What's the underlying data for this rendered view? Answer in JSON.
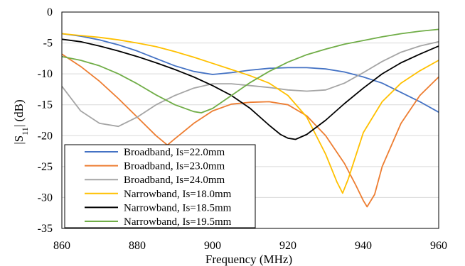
{
  "chart_data": {
    "type": "line",
    "title": "",
    "xlabel": "Frequency (MHz)",
    "ylabel": "|S11| (dB)",
    "ylabel_main": "|S",
    "ylabel_sub": "11",
    "ylabel_tail": "| (dB)",
    "xlim": [
      860,
      960
    ],
    "ylim": [
      -35,
      0
    ],
    "x_ticks": [
      "860",
      "880",
      "900",
      "920",
      "940",
      "960"
    ],
    "y_ticks": [
      "0",
      "-5",
      "-10",
      "-15",
      "-20",
      "-25",
      "-30",
      "-35"
    ],
    "grid": "horizontal",
    "legend_position": "bottom-left",
    "series": [
      {
        "name": "Broadband, Is=22.0mm",
        "color": "#4472C4",
        "x": [
          860,
          865,
          870,
          875,
          880,
          885,
          890,
          895,
          900,
          905,
          910,
          915,
          920,
          925,
          930,
          935,
          940,
          945,
          950,
          955,
          960
        ],
        "y": [
          -3.5,
          -3.9,
          -4.5,
          -5.3,
          -6.3,
          -7.5,
          -8.7,
          -9.6,
          -10.1,
          -9.8,
          -9.4,
          -9.1,
          -9.0,
          -9.0,
          -9.2,
          -9.7,
          -10.5,
          -11.5,
          -13.0,
          -14.5,
          -16.2
        ]
      },
      {
        "name": "Broadband, Is=23.0mm",
        "color": "#ED7D31",
        "x": [
          860,
          865,
          870,
          875,
          880,
          885,
          888,
          890,
          895,
          900,
          905,
          910,
          915,
          920,
          925,
          930,
          935,
          938,
          940,
          941,
          943,
          945,
          950,
          955,
          960
        ],
        "y": [
          -6.8,
          -8.8,
          -11.2,
          -14.0,
          -17.0,
          -20.0,
          -21.5,
          -20.5,
          -18.0,
          -16.0,
          -14.9,
          -14.6,
          -14.5,
          -15.0,
          -16.8,
          -20.0,
          -24.5,
          -28.0,
          -30.5,
          -31.5,
          -29.5,
          -25.0,
          -18.0,
          -13.5,
          -10.5
        ]
      },
      {
        "name": "Broadband, Is=24.0mm",
        "color": "#A5A5A5",
        "x": [
          860,
          865,
          870,
          875,
          880,
          885,
          890,
          895,
          900,
          905,
          910,
          915,
          920,
          925,
          930,
          935,
          940,
          945,
          950,
          955,
          960
        ],
        "y": [
          -12.0,
          -16.0,
          -18.0,
          -18.5,
          -17.0,
          -15.0,
          -13.5,
          -12.3,
          -11.6,
          -11.6,
          -11.9,
          -12.2,
          -12.6,
          -12.8,
          -12.6,
          -11.5,
          -9.8,
          -8.0,
          -6.5,
          -5.5,
          -4.8
        ]
      },
      {
        "name": "Narrowband, Is=18.0mm",
        "color": "#FFC000",
        "x": [
          860,
          865,
          870,
          875,
          880,
          885,
          890,
          895,
          900,
          905,
          910,
          915,
          920,
          925,
          930,
          933,
          934.5,
          936,
          940,
          945,
          950,
          955,
          960
        ],
        "y": [
          -3.5,
          -3.8,
          -4.1,
          -4.5,
          -5.0,
          -5.6,
          -6.4,
          -7.3,
          -8.3,
          -9.3,
          -10.3,
          -11.5,
          -13.5,
          -17.0,
          -23.0,
          -27.5,
          -29.3,
          -27.0,
          -19.5,
          -14.5,
          -11.5,
          -9.5,
          -7.8
        ]
      },
      {
        "name": "Narrowband, Is=18.5mm",
        "color": "#000000",
        "x": [
          860,
          865,
          870,
          875,
          880,
          885,
          890,
          895,
          900,
          905,
          910,
          915,
          918,
          920,
          922,
          925,
          930,
          935,
          940,
          945,
          950,
          955,
          960
        ],
        "y": [
          -4.4,
          -4.8,
          -5.5,
          -6.3,
          -7.2,
          -8.2,
          -9.3,
          -10.5,
          -11.9,
          -13.5,
          -15.6,
          -18.3,
          -19.8,
          -20.4,
          -20.6,
          -19.8,
          -17.5,
          -14.8,
          -12.3,
          -10.0,
          -8.2,
          -6.8,
          -5.5
        ]
      },
      {
        "name": "Narrowband, Is=19.5mm",
        "color": "#70AD47",
        "x": [
          860,
          865,
          870,
          875,
          880,
          885,
          890,
          895,
          897,
          900,
          905,
          910,
          915,
          920,
          925,
          930,
          935,
          940,
          945,
          950,
          955,
          960
        ],
        "y": [
          -7.2,
          -7.8,
          -8.7,
          -10.0,
          -11.6,
          -13.4,
          -15.0,
          -16.1,
          -16.3,
          -15.6,
          -13.5,
          -11.4,
          -9.6,
          -8.1,
          -6.9,
          -6.0,
          -5.2,
          -4.6,
          -4.0,
          -3.5,
          -3.1,
          -2.8
        ]
      }
    ]
  }
}
